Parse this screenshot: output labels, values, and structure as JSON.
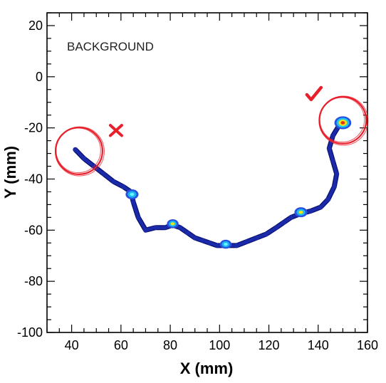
{
  "chart_data": {
    "type": "scatter",
    "title": "",
    "annotation": "BACKGROUND",
    "xlabel": "X (mm)",
    "ylabel": "Y (mm)",
    "xlim": [
      30,
      160
    ],
    "ylim": [
      -100,
      25
    ],
    "x_ticks": [
      40,
      60,
      80,
      100,
      120,
      140,
      160
    ],
    "y_ticks": [
      20,
      0,
      -20,
      -40,
      -60,
      -80,
      -100
    ],
    "grid": false,
    "legend": "none",
    "track": {
      "x": [
        41.5,
        45,
        49,
        53,
        57,
        61,
        64,
        65,
        67,
        70,
        74,
        78,
        81,
        84,
        87,
        90,
        93,
        96,
        99,
        103,
        107,
        111,
        115,
        119,
        123,
        126,
        129,
        133,
        137,
        141,
        144,
        146.5,
        147.5,
        146,
        144.5,
        146,
        148.5,
        150
      ],
      "y": [
        -28.5,
        -32,
        -35,
        -38,
        -41,
        -43,
        -45,
        -49,
        -55,
        -60,
        -59,
        -59,
        -58,
        -59,
        -61,
        -63,
        -64,
        -65,
        -66,
        -66,
        -66,
        -64.5,
        -63,
        -61.5,
        -59,
        -57,
        -55,
        -53.5,
        -52.5,
        -51,
        -48,
        -43,
        -38,
        -33,
        -28,
        -23,
        -19,
        -16.5
      ],
      "color": "#1a2aa8"
    },
    "hotspots": [
      {
        "x": 64.5,
        "y": -46,
        "size": 1.0,
        "level": "mid"
      },
      {
        "x": 81,
        "y": -57.5,
        "size": 0.9,
        "level": "high"
      },
      {
        "x": 102.5,
        "y": -65.5,
        "size": 0.9,
        "level": "mid"
      },
      {
        "x": 133,
        "y": -53,
        "size": 1.0,
        "level": "high"
      },
      {
        "x": 150,
        "y": -18,
        "size": 1.3,
        "level": "peak"
      }
    ],
    "markers": [
      {
        "type": "cross",
        "x": 58,
        "y": -21,
        "color": "#e8202c"
      },
      {
        "type": "check",
        "x": 138,
        "y": -7,
        "color": "#e8202c"
      },
      {
        "type": "circle",
        "cx": 43,
        "cy": -29,
        "r": 9.5,
        "color": "#e8202c"
      },
      {
        "type": "circle",
        "cx": 150,
        "cy": -17,
        "r": 9.5,
        "color": "#e8202c"
      }
    ]
  }
}
